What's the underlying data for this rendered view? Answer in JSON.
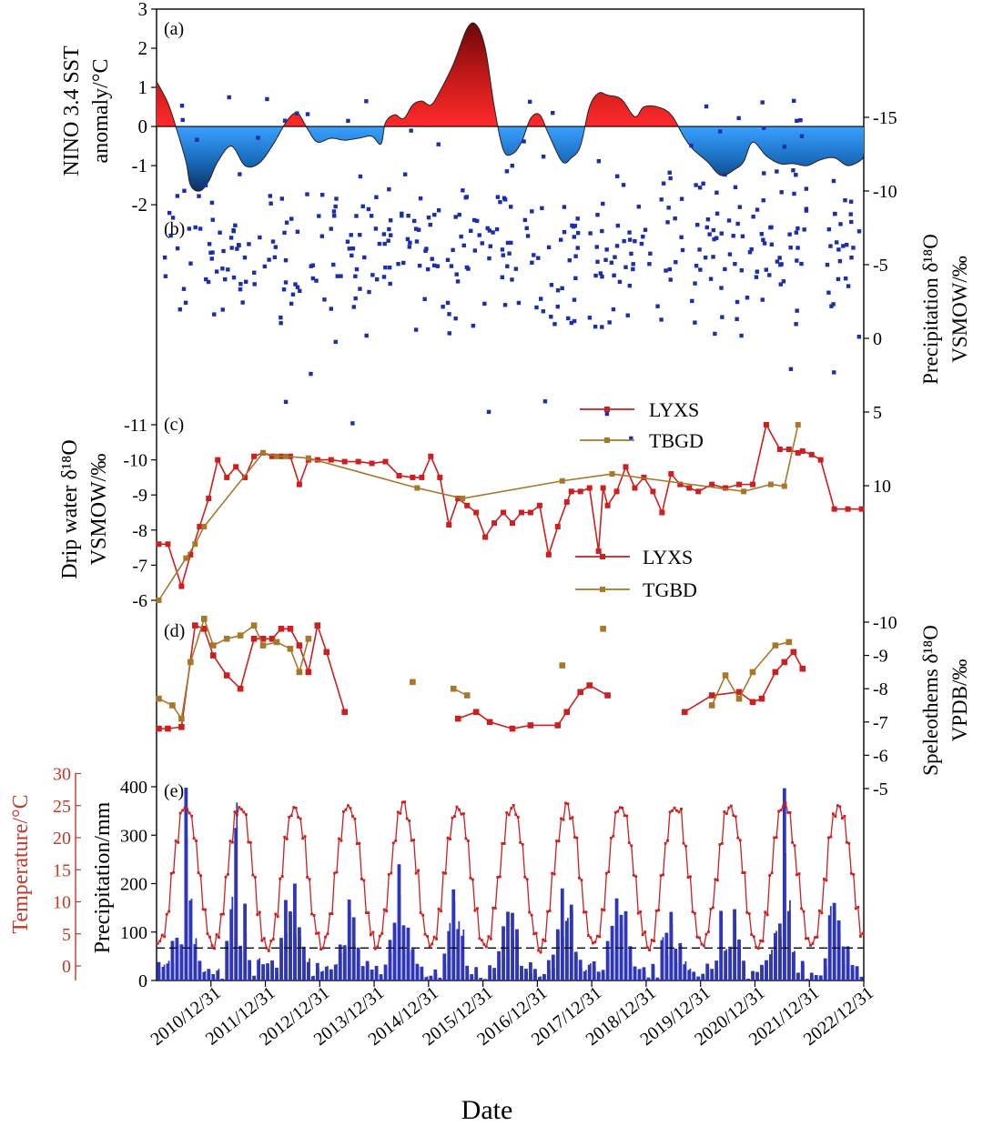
{
  "figure": {
    "xlabel": "Date",
    "date_ticks": [
      "2010/12/31",
      "2011/12/31",
      "2012/12/31",
      "2013/12/31",
      "2014/12/31",
      "2015/12/31",
      "2016/12/31",
      "2017/12/31",
      "2018/12/31",
      "2019/12/31",
      "2020/12/31",
      "2021/12/31",
      "2022/12/31"
    ],
    "colors": {
      "red": "#cc1f1f",
      "dark_red": "#7a0d0d",
      "blue": "#2080d0",
      "dark_blue": "#0b3a70",
      "olive": "#a6782a",
      "scatter_blue": "#1c2fa8",
      "bar_blue": "#2f36b8",
      "axis_red": "#c0392b"
    }
  },
  "chart_data": [
    {
      "panel": "(a)",
      "type": "area",
      "ylabel": "NINO 3.4 SST anomaly/°C",
      "ylim": [
        -2.3,
        3
      ],
      "yticks": [
        3,
        2,
        1,
        0,
        -1,
        -2
      ],
      "x": [
        "2010-01",
        "2010-03",
        "2010-05",
        "2010-07",
        "2010-08",
        "2010-10",
        "2010-12",
        "2011-02",
        "2011-05",
        "2011-08",
        "2011-11",
        "2012-02",
        "2012-05",
        "2012-07",
        "2012-08",
        "2012-10",
        "2012-12",
        "2013-03",
        "2013-06",
        "2013-09",
        "2013-12",
        "2014-02",
        "2014-03",
        "2014-05",
        "2014-07",
        "2014-09",
        "2014-11",
        "2015-01",
        "2015-03",
        "2015-06",
        "2015-09",
        "2015-11",
        "2016-01",
        "2016-03",
        "2016-05",
        "2016-07",
        "2016-09",
        "2016-11",
        "2017-01",
        "2017-03",
        "2017-06",
        "2017-08",
        "2017-10",
        "2017-12",
        "2018-02",
        "2018-04",
        "2018-07",
        "2018-10",
        "2018-12",
        "2019-03",
        "2019-06",
        "2019-09",
        "2019-11",
        "2020-02",
        "2020-05",
        "2020-08",
        "2020-10",
        "2020-12",
        "2021-03",
        "2021-06",
        "2021-09",
        "2021-12",
        "2022-03",
        "2022-06",
        "2022-09",
        "2022-12",
        "2023-01"
      ],
      "values": [
        1.15,
        0.6,
        -0.1,
        -0.9,
        -1.5,
        -1.65,
        -1.4,
        -0.9,
        -0.5,
        -1.0,
        -0.95,
        -0.5,
        0.1,
        0.35,
        0.3,
        -0.1,
        -0.4,
        -0.3,
        -0.35,
        -0.3,
        -0.25,
        -0.45,
        0.1,
        0.3,
        0.2,
        0.55,
        0.65,
        0.55,
        0.9,
        1.6,
        2.5,
        2.6,
        2.0,
        0.5,
        -0.6,
        -0.7,
        -0.4,
        0.2,
        0.3,
        -0.2,
        -0.9,
        -0.8,
        -0.5,
        0.5,
        0.85,
        0.8,
        0.7,
        0.25,
        0.5,
        0.5,
        0.3,
        -0.3,
        -0.6,
        -0.9,
        -1.25,
        -1.1,
        -0.9,
        -0.4,
        -0.75,
        -0.95,
        -0.95,
        -1.0,
        -0.85,
        -0.8,
        -1.0,
        -0.85,
        -0.7
      ]
    },
    {
      "panel": "(b)",
      "type": "scatter",
      "ylabel": "Precipitation δ18O VSMOW/‰",
      "ylim": [
        10,
        -17
      ],
      "yticks": [
        -15,
        -10,
        -5,
        0,
        5,
        10
      ],
      "x_start": "2010-01",
      "x_end": "2022-12",
      "point_count": 460,
      "values": []
    },
    {
      "panel": "(c)",
      "type": "line",
      "ylabel": "Drip water δ18O VSMOW/‰",
      "ylim": [
        -5.8,
        -11.3
      ],
      "yticks": [
        -11,
        -10,
        -9,
        -8,
        -7,
        -6
      ],
      "series": [
        {
          "name": "LYXS",
          "color": "#cc1f1f",
          "x": [
            "2010-01",
            "2010-03",
            "2010-06",
            "2010-08",
            "2010-10",
            "2010-12",
            "2011-02",
            "2011-04",
            "2011-06",
            "2011-08",
            "2011-10",
            "2011-12",
            "2012-02",
            "2012-04",
            "2012-06",
            "2012-08",
            "2012-10",
            "2012-12",
            "2013-03",
            "2013-06",
            "2013-09",
            "2013-12",
            "2014-03",
            "2014-06",
            "2014-09",
            "2014-11",
            "2015-01",
            "2015-03",
            "2015-05",
            "2015-07",
            "2015-09",
            "2015-11",
            "2016-01",
            "2016-03",
            "2016-05",
            "2016-07",
            "2016-09",
            "2016-11",
            "2017-01",
            "2017-03",
            "2017-05",
            "2017-07",
            "2017-08",
            "2017-10",
            "2017-12",
            "2018-02",
            "2018-03",
            "2018-04",
            "2018-06",
            "2018-08",
            "2018-10",
            "2018-12",
            "2019-02",
            "2019-04",
            "2019-06",
            "2019-08",
            "2019-10",
            "2019-12",
            "2020-03",
            "2020-06",
            "2020-09",
            "2020-12",
            "2021-03",
            "2021-06",
            "2021-08",
            "2021-10",
            "2021-11",
            "2022-01",
            "2022-03",
            "2022-06",
            "2022-09",
            "2022-12"
          ],
          "values": [
            -7.6,
            -7.6,
            -6.4,
            -7.3,
            -8.1,
            -8.9,
            -10.0,
            -9.5,
            -9.8,
            -9.5,
            -10.1,
            -10.2,
            -10.1,
            -10.1,
            -10.1,
            -9.3,
            -10.0,
            -10.0,
            -10.0,
            -9.95,
            -9.95,
            -9.9,
            -9.95,
            -9.55,
            -9.5,
            -9.5,
            -10.1,
            -9.5,
            -8.15,
            -8.9,
            -8.7,
            -8.5,
            -7.8,
            -8.2,
            -8.5,
            -8.2,
            -8.5,
            -8.5,
            -8.7,
            -7.3,
            -8.1,
            -8.8,
            -9.1,
            -9.1,
            -9.2,
            -7.4,
            -9.2,
            -8.7,
            -9.1,
            -9.8,
            -9.2,
            -9.5,
            -9.1,
            -8.5,
            -9.6,
            -9.3,
            -9.2,
            -9.1,
            -9.3,
            -9.2,
            -9.3,
            -9.3,
            -11.0,
            -10.3,
            -10.3,
            -10.2,
            -10.25,
            -10.15,
            -10.0,
            -8.6,
            -8.6,
            -8.6
          ]
        },
        {
          "name": "TBGD",
          "color": "#a6782a",
          "x": [
            "2010-01",
            "2010-07",
            "2010-09",
            "2010-11",
            "2011-12",
            "2012-03",
            "2012-05",
            "2012-10",
            "2014-10",
            "2015-08",
            "2017-06",
            "2018-05",
            "2020-10",
            "2021-04",
            "2021-07",
            "2021-10"
          ],
          "values": [
            -6.0,
            -7.2,
            -7.6,
            -8.1,
            -10.2,
            -10.1,
            -10.1,
            -10.05,
            -9.2,
            -8.9,
            -9.4,
            -9.6,
            -9.1,
            -9.3,
            -9.25,
            -11.0
          ]
        }
      ]
    },
    {
      "panel": "(d)",
      "type": "line",
      "ylabel": "Speleothems δ18O VPDB/‰",
      "ylim": [
        -4.4,
        -10.4
      ],
      "yticks": [
        -10,
        -9,
        -8,
        -7,
        -6,
        -5
      ],
      "series": [
        {
          "name": "LYXS",
          "color": "#cc1f1f",
          "x": [
            "2010-01",
            "2010-03",
            "2010-06",
            "2010-09",
            "2010-11",
            "2011-01",
            "2011-04",
            "2011-07",
            "2011-10",
            "2011-12",
            "2012-02",
            "2012-04",
            "2012-06",
            "2012-08",
            "2012-10",
            "2012-12",
            "2013-02",
            "2013-06",
            "2015-07",
            "2015-11",
            "2016-02",
            "2016-07",
            "2016-11",
            "2017-05",
            "2017-07",
            "2017-10",
            "2017-12",
            "2018-04",
            "2019-09",
            "2020-03",
            "2020-09",
            "2020-12",
            "2021-02",
            "2021-05",
            "2021-07",
            "2021-09",
            "2021-11"
          ],
          "values": [
            -6.8,
            -6.8,
            -6.85,
            -9.9,
            -9.8,
            -9.0,
            -8.4,
            -8.0,
            -9.5,
            -9.5,
            -9.5,
            -9.8,
            -9.8,
            -9.3,
            -8.5,
            -9.9,
            -9.1,
            -7.3,
            -7.1,
            -7.3,
            -7.0,
            -6.8,
            -6.9,
            -6.9,
            -7.3,
            -7.9,
            -8.1,
            -7.8,
            -7.3,
            -7.8,
            -7.9,
            -7.6,
            -7.7,
            -8.5,
            -8.8,
            -9.1,
            -8.6
          ]
        },
        {
          "name": "TGBD",
          "color": "#a6782a",
          "x": [
            "2010-01",
            "2010-04",
            "2010-06",
            "2010-08",
            "2010-11",
            "2011-01",
            "2011-04",
            "2011-07",
            "2011-10",
            "2011-12",
            "2012-03",
            "2012-06",
            "2012-08",
            "2012-10",
            "2014-09",
            "2015-06",
            "2015-09",
            "2017-06",
            "2018-03",
            "2020-03",
            "2020-06",
            "2020-09",
            "2020-12",
            "2021-05",
            "2021-08"
          ],
          "values": [
            -7.7,
            -7.5,
            -7.1,
            -8.8,
            -10.1,
            -9.3,
            -9.5,
            -9.6,
            -9.9,
            -9.3,
            -9.4,
            -9.2,
            -8.5,
            -9.5,
            -8.2,
            -8.0,
            -7.8,
            -8.7,
            -9.8,
            -7.5,
            -8.4,
            -7.7,
            -8.5,
            -9.3,
            -9.4
          ]
        }
      ]
    },
    {
      "panel": "(e)",
      "type": "bar+line",
      "ylabel": "Precipitation/mm",
      "ylabel2": "Temperature/°C",
      "ylim": [
        0,
        400
      ],
      "ylim2": [
        -2.5,
        30
      ],
      "yticks": [
        0,
        100,
        200,
        300,
        400
      ],
      "yticks2": [
        0,
        5,
        10,
        15,
        20,
        25,
        30
      ],
      "reference_line_mm": 67,
      "x_start": "2010-01",
      "x_end": "2022-12",
      "temperature_seasonal": {
        "min": 3.0,
        "max": 25.0,
        "peak_month": 7
      },
      "precipitation_peaks": [
        {
          "date": "2010-07",
          "value": 398
        },
        {
          "date": "2011-06",
          "value": 315
        },
        {
          "date": "2012-07",
          "value": 200
        },
        {
          "date": "2014-06",
          "value": 240
        },
        {
          "date": "2015-06",
          "value": 188
        },
        {
          "date": "2017-06",
          "value": 190
        },
        {
          "date": "2021-07",
          "value": 397
        }
      ],
      "values": []
    }
  ]
}
